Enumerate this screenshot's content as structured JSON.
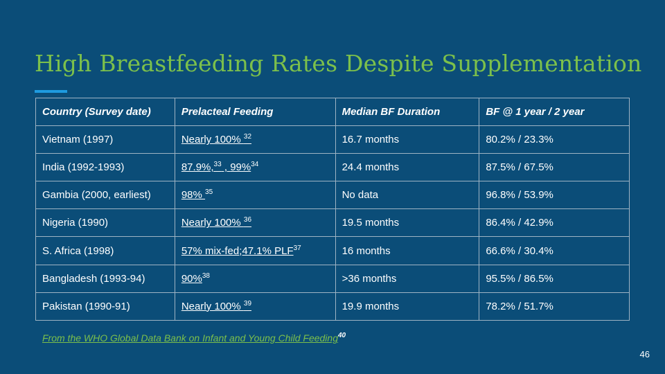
{
  "slide": {
    "title": "High Breastfeeding Rates Despite Supplementation",
    "page_number": "46"
  },
  "table": {
    "headers": [
      "Country (Survey date)",
      "Prelacteal Feeding",
      "Median BF Duration",
      "BF  @ 1 year / 2 year"
    ],
    "rows": [
      {
        "country": "Vietnam (1997)",
        "prelacteal": "Nearly 100% ",
        "prelacteal_sup": "32",
        "duration": "16.7 months",
        "bf_rates": "80.2% / 23.3%"
      },
      {
        "country": "India (1992-1993)",
        "prelacteal_a": "87.9%,",
        "prelacteal_sup_a": "33",
        "prelacteal_sep": " , ",
        "prelacteal_b": "99%",
        "prelacteal_sup_b": "34",
        "duration": "24.4 months",
        "bf_rates": "87.5% / 67.5%"
      },
      {
        "country": "Gambia (2000, earliest)",
        "prelacteal": "98% ",
        "prelacteal_sup": "35",
        "duration": "No data",
        "bf_rates": "96.8% / 53.9%"
      },
      {
        "country": "Nigeria (1990)",
        "prelacteal": "Nearly 100% ",
        "prelacteal_sup": "36",
        "duration": "19.5 months",
        "bf_rates": "86.4% / 42.9%"
      },
      {
        "country": "S. Africa (1998)",
        "prelacteal": "57% mix-fed;47.1% PLF",
        "prelacteal_sup": "37",
        "duration": "16 months",
        "bf_rates": "66.6% / 30.4%"
      },
      {
        "country": "Bangladesh (1993-94)",
        "prelacteal": "90%",
        "prelacteal_sup": "38",
        "duration": ">36 months",
        "bf_rates": "95.5% / 86.5%"
      },
      {
        "country": "Pakistan (1990-91)",
        "prelacteal": "Nearly 100% ",
        "prelacteal_sup": "39",
        "duration": "19.9 months",
        "bf_rates": "78.2% / 51.7%"
      }
    ]
  },
  "footnote": {
    "text": "From the WHO Global Data Bank on Infant and Young Child Feeding",
    "sup": "40"
  },
  "colors": {
    "background": "#0b4d78",
    "title": "#7cc04b",
    "accent_bar": "#1e9be0",
    "border": "#9fb4c4"
  }
}
